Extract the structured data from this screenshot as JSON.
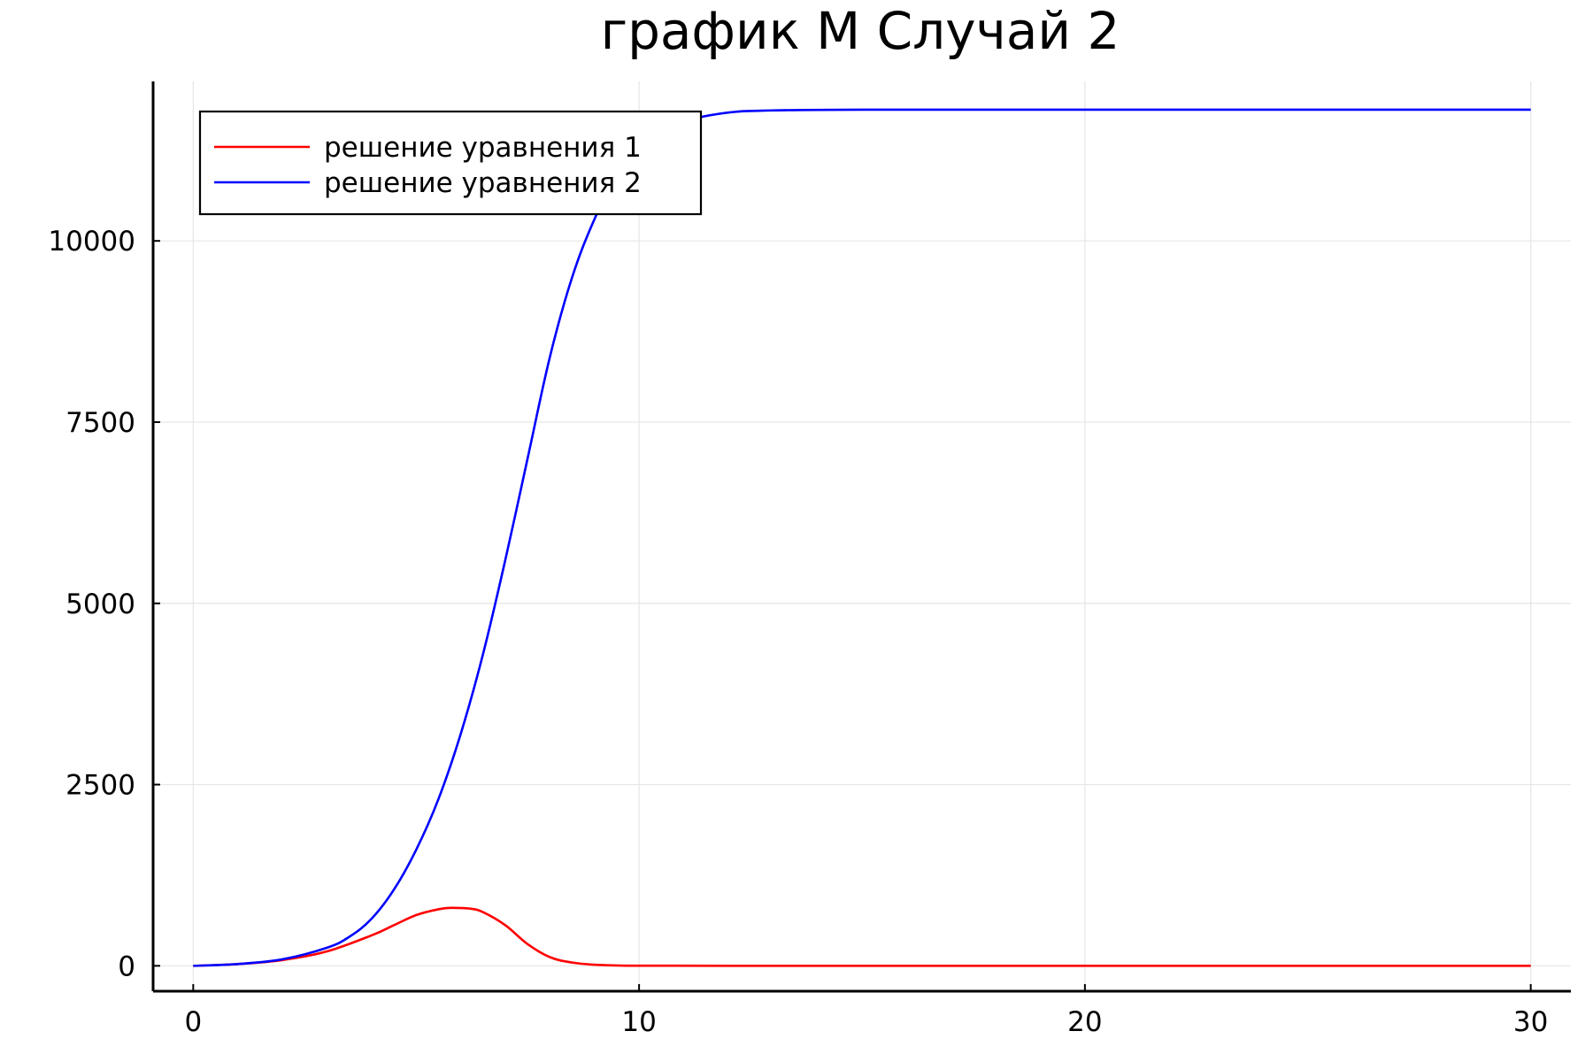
{
  "chart_data": {
    "type": "line",
    "title": "график M Случай 2",
    "xlabel": "",
    "ylabel": "",
    "xlim": [
      -0.9,
      30.9
    ],
    "ylim": [
      -350,
      12200
    ],
    "xticks": [
      0,
      10,
      20,
      30
    ],
    "xtick_labels": [
      "0",
      "10",
      "20",
      "30"
    ],
    "yticks": [
      0,
      2500,
      5000,
      7500,
      10000
    ],
    "ytick_labels": [
      "0",
      "2500",
      "5000",
      "7500",
      "10000"
    ],
    "grid": true,
    "legend_position": "top-left",
    "series": [
      {
        "name": "решение уравнения 1",
        "color": "#ff0000",
        "x": [
          0,
          1,
          2,
          3,
          4,
          4.5,
          5,
          5.5,
          5.8,
          6.2,
          6.5,
          7,
          7.5,
          8,
          8.5,
          9,
          9.5,
          10,
          12,
          15,
          20,
          25,
          30
        ],
        "y": [
          0,
          25,
          80,
          200,
          420,
          560,
          700,
          780,
          800,
          790,
          740,
          560,
          300,
          120,
          45,
          15,
          5,
          2,
          0,
          0,
          0,
          0,
          0
        ]
      },
      {
        "name": "решение уравнения 2",
        "color": "#0000ff",
        "x": [
          0,
          1,
          2,
          3,
          3.5,
          4,
          4.5,
          5,
          5.5,
          6,
          6.5,
          7,
          7.5,
          8,
          8.5,
          9,
          9.5,
          10,
          10.5,
          11,
          12,
          13,
          15,
          20,
          25,
          30
        ],
        "y": [
          0,
          25,
          90,
          250,
          400,
          650,
          1050,
          1600,
          2300,
          3200,
          4300,
          5600,
          7000,
          8400,
          9500,
          10300,
          10900,
          11300,
          11500,
          11650,
          11770,
          11800,
          11810,
          11810,
          11810,
          11810
        ]
      }
    ]
  }
}
